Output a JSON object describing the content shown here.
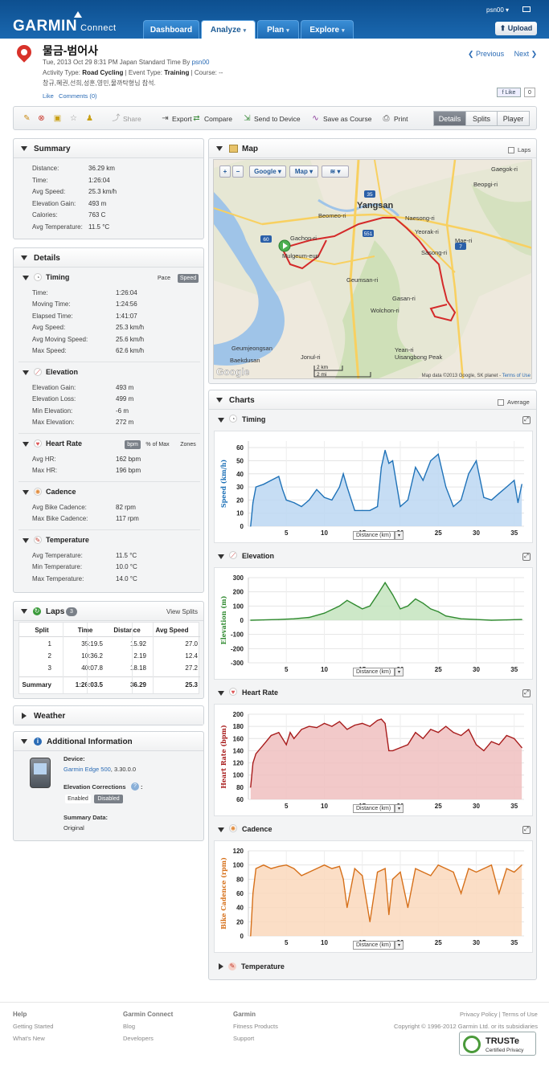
{
  "header": {
    "logo": "GARMIN",
    "logo_sub": "Connect",
    "user": "psn00",
    "upload": "Upload",
    "tabs": [
      {
        "label": "Dashboard"
      },
      {
        "label": "Analyze"
      },
      {
        "label": "Plan"
      },
      {
        "label": "Explore"
      }
    ]
  },
  "activity": {
    "title": "물금-범어사",
    "date_line_prefix": "Tue, 2013 Oct 29 8:31 PM Japan Standard Time By ",
    "owner": "psn00",
    "activity_type_label": "Activity Type:",
    "activity_type": "Road Cycling",
    "event_type_label": "| Event Type:",
    "event_type": "Training",
    "course_label": "| Course:",
    "course": "--",
    "description": "창규,혜권,선희,성훈,영민,물까탁형님 참석.",
    "like": "Like",
    "comments": "Comments (0)",
    "prev": "Previous",
    "next": "Next",
    "fb_like": "Like",
    "fb_count": "0"
  },
  "toolbar": {
    "share": "Share",
    "export": "Export",
    "compare": "Compare",
    "send": "Send to Device",
    "save_course": "Save as Course",
    "print": "Print",
    "views": [
      "Details",
      "Splits",
      "Player"
    ]
  },
  "summary": {
    "title": "Summary",
    "rows": [
      {
        "label": "Distance:",
        "value": "36.29 km"
      },
      {
        "label": "Time:",
        "value": "1:26:04"
      },
      {
        "label": "Avg Speed:",
        "value": "25.3 km/h"
      },
      {
        "label": "Elevation Gain:",
        "value": "493 m"
      },
      {
        "label": "Calories:",
        "value": "763 C"
      },
      {
        "label": "Avg Temperature:",
        "value": "11.5 °C"
      }
    ]
  },
  "details": {
    "title": "Details",
    "timing": {
      "title": "Timing",
      "pace": "Pace",
      "speed": "Speed",
      "rows": [
        {
          "label": "Time:",
          "value": "1:26:04"
        },
        {
          "label": "Moving Time:",
          "value": "1:24:56"
        },
        {
          "label": "Elapsed Time:",
          "value": "1:41:07"
        },
        {
          "label": "Avg Speed:",
          "value": "25.3 km/h"
        },
        {
          "label": "Avg Moving Speed:",
          "value": "25.6 km/h"
        },
        {
          "label": "Max Speed:",
          "value": "62.6 km/h"
        }
      ]
    },
    "elevation": {
      "title": "Elevation",
      "rows": [
        {
          "label": "Elevation Gain:",
          "value": "493 m"
        },
        {
          "label": "Elevation Loss:",
          "value": "499 m"
        },
        {
          "label": "Min Elevation:",
          "value": "-6 m"
        },
        {
          "label": "Max Elevation:",
          "value": "272 m"
        }
      ]
    },
    "heart_rate": {
      "title": "Heart Rate",
      "bpm": "bpm",
      "pct": "% of Max",
      "zones": "Zones",
      "rows": [
        {
          "label": "Avg HR:",
          "value": "162 bpm"
        },
        {
          "label": "Max HR:",
          "value": "196 bpm"
        }
      ]
    },
    "cadence": {
      "title": "Cadence",
      "rows": [
        {
          "label": "Avg Bike Cadence:",
          "value": "82 rpm"
        },
        {
          "label": "Max Bike Cadence:",
          "value": "117 rpm"
        }
      ]
    },
    "temperature": {
      "title": "Temperature",
      "rows": [
        {
          "label": "Avg Temperature:",
          "value": "11.5 °C"
        },
        {
          "label": "Min Temperature:",
          "value": "10.0 °C"
        },
        {
          "label": "Max Temperature:",
          "value": "14.0 °C"
        }
      ]
    }
  },
  "laps": {
    "title": "Laps",
    "count": "3",
    "view_splits": "View Splits",
    "headers": [
      "Split",
      "Time",
      "Distance",
      "Avg Speed"
    ],
    "rows": [
      [
        "1",
        "35:19.5",
        "15.92",
        "27.0"
      ],
      [
        "2",
        "10:36.2",
        "2.19",
        "12.4"
      ],
      [
        "3",
        "40:07.8",
        "18.18",
        "27.2"
      ]
    ],
    "summary": [
      "Summary",
      "1:26:03.5",
      "36.29",
      "25.3"
    ]
  },
  "weather": {
    "title": "Weather"
  },
  "additional": {
    "title": "Additional Information",
    "device_label": "Device:",
    "device": "Garmin Edge 500",
    "device_version": ", 3.30.0.0",
    "elev_corr_label": "Elevation Corrections",
    "colon": ":",
    "enabled": "Enabled",
    "disabled": "Disabled",
    "summary_data_label": "Summary Data:",
    "summary_data": "Original"
  },
  "map": {
    "title": "Map",
    "laps": "Laps",
    "zoom_in": "+",
    "zoom_out": "−",
    "google": "Google",
    "map_type": "Map",
    "attrib": "Map data ©2013 Google, SK planet - ",
    "terms": "Terms of Use",
    "scale_km": "2 km",
    "scale_mi": "2 mi",
    "google_logo": "Google",
    "places": [
      "Gaegok-ri",
      "Beopgi-ri",
      "Yangsan",
      "Beomeo-ri",
      "Naesong-ri",
      "Gachon-ri",
      "Mulgeum-eup",
      "Mae-ri",
      "Yeorak-ri",
      "Sasong-ri",
      "Geumsan-ri",
      "Gasan-ri",
      "Wolchon-ri",
      "Geumjeongsan",
      "Yean-ri",
      "Uisangbong Peak",
      "Jonul-ri",
      "Baekdusan"
    ],
    "roads": [
      "35",
      "60",
      "551",
      "7"
    ],
    "colors": {
      "route": "#d42a2a",
      "water": "#9fc4e8",
      "land": "#eee9dd",
      "park": "#c9deb0",
      "road": "#f8d060",
      "hwy": "#2a5fa8"
    }
  },
  "charts": {
    "title": "Charts",
    "average": "Average",
    "temperature_title": "Temperature",
    "xlabel": "Distance (km)"
  },
  "chart_data": [
    {
      "type": "area",
      "title": "Timing",
      "xlabel": "Distance (km)",
      "ylabel": "Speed (km/h)",
      "xlim": [
        0,
        36.3
      ],
      "ylim": [
        0,
        65
      ],
      "xticks": [
        5,
        10,
        15,
        20,
        25,
        30,
        35
      ],
      "yticks": [
        0,
        10,
        20,
        30,
        40,
        50,
        60
      ],
      "color": "#1f72b8",
      "fill": "#bcd7f2",
      "x": [
        0.3,
        0.6,
        1,
        2,
        3,
        4,
        4.5,
        5,
        6,
        7,
        8,
        9,
        10,
        11,
        12,
        12.5,
        13,
        14,
        15,
        16,
        17,
        17.5,
        18,
        18.5,
        19,
        20,
        21,
        22,
        23,
        24,
        25,
        26,
        27,
        28,
        29,
        30,
        31,
        32,
        33,
        34,
        35,
        35.5,
        36
      ],
      "y": [
        0,
        18,
        30,
        32,
        35,
        38,
        28,
        20,
        18,
        15,
        20,
        28,
        22,
        20,
        30,
        40,
        30,
        12,
        12,
        12,
        15,
        45,
        58,
        48,
        50,
        15,
        20,
        45,
        35,
        50,
        55,
        30,
        15,
        20,
        40,
        50,
        22,
        20,
        25,
        30,
        35,
        18,
        32
      ]
    },
    {
      "type": "area",
      "title": "Elevation",
      "xlabel": "Distance (km)",
      "ylabel": "Elevation (m)",
      "xlim": [
        0,
        36.3
      ],
      "ylim": [
        -300,
        300
      ],
      "xticks": [
        5,
        10,
        15,
        20,
        25,
        30,
        35
      ],
      "yticks": [
        -300,
        -200,
        -100,
        0,
        100,
        200,
        300
      ],
      "color": "#2f8a2f",
      "fill": "#c4e4be",
      "x": [
        0.3,
        2,
        4,
        6,
        8,
        10,
        12,
        13,
        14,
        15,
        16,
        17,
        18,
        19,
        20,
        21,
        22,
        23,
        24,
        25,
        26,
        28,
        30,
        32,
        34,
        36
      ],
      "y": [
        0,
        2,
        5,
        10,
        20,
        50,
        100,
        140,
        110,
        80,
        100,
        180,
        265,
        180,
        80,
        100,
        150,
        120,
        80,
        60,
        30,
        10,
        5,
        0,
        2,
        5
      ]
    },
    {
      "type": "area",
      "title": "Heart Rate",
      "xlabel": "Distance (km)",
      "ylabel": "Heart Rate (bpm)",
      "xlim": [
        0,
        36.3
      ],
      "ylim": [
        60,
        200
      ],
      "xticks": [
        5,
        10,
        15,
        20,
        25,
        30,
        35
      ],
      "yticks": [
        60,
        80,
        100,
        120,
        140,
        160,
        180,
        200
      ],
      "color": "#a81c1c",
      "fill": "#f0c0c0",
      "x": [
        0.3,
        0.6,
        1,
        2,
        3,
        4,
        5,
        5.5,
        6,
        7,
        8,
        9,
        10,
        11,
        12,
        13,
        14,
        15,
        16,
        17,
        17.5,
        18,
        18.5,
        19,
        20,
        21,
        22,
        23,
        24,
        25,
        26,
        27,
        28,
        29,
        30,
        31,
        32,
        33,
        34,
        35,
        36
      ],
      "y": [
        80,
        120,
        135,
        150,
        165,
        170,
        150,
        170,
        160,
        175,
        180,
        178,
        185,
        180,
        188,
        175,
        182,
        185,
        180,
        190,
        192,
        185,
        140,
        140,
        145,
        150,
        170,
        160,
        175,
        170,
        180,
        170,
        165,
        175,
        150,
        140,
        155,
        150,
        165,
        160,
        145
      ]
    },
    {
      "type": "area",
      "title": "Cadence",
      "xlabel": "Distance (km)",
      "ylabel": "Bike Cadence (rpm)",
      "xlim": [
        0,
        36.3
      ],
      "ylim": [
        0,
        120
      ],
      "xticks": [
        5,
        10,
        15,
        20,
        25,
        30,
        35
      ],
      "yticks": [
        0,
        20,
        40,
        60,
        80,
        100,
        120
      ],
      "color": "#d6701a",
      "fill": "#fad8bc",
      "x": [
        0.3,
        0.6,
        1,
        2,
        3,
        4,
        5,
        6,
        7,
        8,
        9,
        10,
        11,
        12,
        12.5,
        13,
        14,
        15,
        16,
        17,
        18,
        18.5,
        19,
        20,
        21,
        22,
        23,
        24,
        25,
        26,
        27,
        28,
        29,
        30,
        31,
        32,
        33,
        34,
        35,
        36
      ],
      "y": [
        0,
        60,
        95,
        100,
        95,
        98,
        100,
        95,
        85,
        90,
        95,
        100,
        95,
        98,
        80,
        40,
        95,
        85,
        20,
        90,
        95,
        30,
        80,
        90,
        40,
        95,
        90,
        85,
        100,
        95,
        90,
        60,
        95,
        90,
        95,
        100,
        60,
        95,
        90,
        100
      ]
    }
  ],
  "footer": {
    "cols": [
      {
        "h": "Help",
        "items": [
          "Getting Started",
          "What's New"
        ]
      },
      {
        "h": "Garmin Connect",
        "items": [
          "Blog",
          "Developers"
        ]
      },
      {
        "h": "Garmin",
        "items": [
          "Fitness Products",
          "Support"
        ]
      }
    ],
    "privacy": "Privacy Policy",
    "terms": "Terms of Use",
    "copyright": "Copyright © 1996-2012 Garmin Ltd. or its subsidiaries",
    "truste": "TRUSTe",
    "truste_sub": "Certified Privacy"
  }
}
